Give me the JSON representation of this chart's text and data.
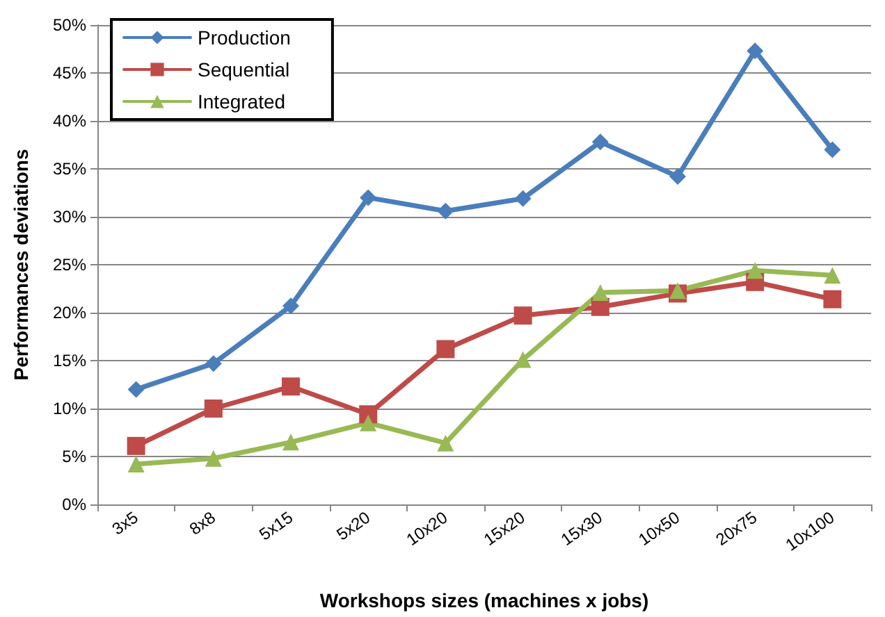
{
  "chart_data": {
    "type": "line",
    "xlabel": "Workshops sizes (machines x jobs)",
    "ylabel": "Performances deviations",
    "categories": [
      "3x5",
      "8x8",
      "5x15",
      "5x20",
      "10x20",
      "15x20",
      "15x30",
      "10x50",
      "20x75",
      "10x100"
    ],
    "series": [
      {
        "name": "Production",
        "color": "#4a7ebb",
        "marker": "diamond",
        "values": [
          12,
          14.7,
          20.7,
          32,
          30.6,
          31.9,
          37.8,
          34.2,
          47.3,
          37
        ]
      },
      {
        "name": "Sequential",
        "color": "#be4b48",
        "marker": "square",
        "values": [
          6.1,
          10,
          12.3,
          9.4,
          16.2,
          19.7,
          20.6,
          22,
          23.2,
          21.4
        ]
      },
      {
        "name": "Integrated",
        "color": "#98b954",
        "marker": "triangle",
        "values": [
          4.2,
          4.8,
          6.5,
          8.5,
          6.4,
          15.1,
          22.1,
          22.3,
          24.4,
          23.9
        ]
      }
    ],
    "ylim": [
      0,
      50
    ],
    "yticks": [
      {
        "value": 0,
        "label": "0%"
      },
      {
        "value": 5,
        "label": "5%"
      },
      {
        "value": 10,
        "label": "10%"
      },
      {
        "value": 15,
        "label": "15%"
      },
      {
        "value": 20,
        "label": "20%"
      },
      {
        "value": 25,
        "label": "25%"
      },
      {
        "value": 30,
        "label": "30%"
      },
      {
        "value": 35,
        "label": "35%"
      },
      {
        "value": 40,
        "label": "40%"
      },
      {
        "value": 45,
        "label": "45%"
      },
      {
        "value": 50,
        "label": "50%"
      }
    ],
    "grid": "y",
    "legend": "top left",
    "line_style": "solid"
  }
}
